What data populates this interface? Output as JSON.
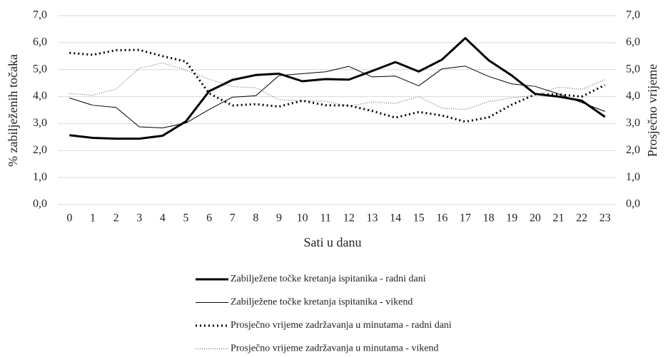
{
  "chart_data": {
    "type": "line",
    "x_label": "Sati u danu",
    "y_label": "% zabilježenih točaka",
    "y2_label": "Prosječno vrijeme",
    "categories": [
      "0",
      "1",
      "2",
      "3",
      "4",
      "5",
      "6",
      "7",
      "8",
      "9",
      "10",
      "11",
      "12",
      "13",
      "14",
      "15",
      "16",
      "17",
      "18",
      "19",
      "20",
      "21",
      "22",
      "23"
    ],
    "ylim": [
      0,
      7
    ],
    "yticks": [
      {
        "value": 0,
        "label": "0,0"
      },
      {
        "value": 1,
        "label": "1,0"
      },
      {
        "value": 2,
        "label": "2,0"
      },
      {
        "value": 3,
        "label": "3,0"
      },
      {
        "value": 4,
        "label": "4,0"
      },
      {
        "value": 5,
        "label": "5,0"
      },
      {
        "value": 6,
        "label": "6,0"
      },
      {
        "value": 7,
        "label": "7,0"
      }
    ],
    "y2lim": [
      0,
      7
    ],
    "y2ticks": [
      {
        "value": 0,
        "label": "0,0"
      },
      {
        "value": 1,
        "label": "1,0"
      },
      {
        "value": 2,
        "label": "2,0"
      },
      {
        "value": 3,
        "label": "3,0"
      },
      {
        "value": 4,
        "label": "4,0"
      },
      {
        "value": 5,
        "label": "5,0"
      },
      {
        "value": 6,
        "label": "6,0"
      },
      {
        "value": 7,
        "label": "7,0"
      }
    ],
    "grid": true,
    "legend": "bottom",
    "series": [
      {
        "name": "Zabilježene točke kretanja ispitanika - radni dani",
        "color": "#000000",
        "width": 3,
        "dash": "none",
        "values": [
          2.57,
          2.47,
          2.44,
          2.44,
          2.55,
          3.08,
          4.2,
          4.62,
          4.8,
          4.85,
          4.57,
          4.65,
          4.63,
          4.95,
          5.28,
          4.93,
          5.37,
          6.17,
          5.35,
          4.78,
          4.1,
          4.0,
          3.85,
          3.25
        ]
      },
      {
        "name": "Zabilježene točke kretanja ispitanika - vikend",
        "color": "#000000",
        "width": 1,
        "dash": "none",
        "values": [
          3.95,
          3.68,
          3.6,
          2.88,
          2.84,
          3.02,
          3.52,
          3.98,
          4.03,
          4.78,
          4.85,
          4.92,
          5.12,
          4.73,
          4.76,
          4.4,
          5.03,
          5.13,
          4.75,
          4.47,
          4.38,
          4.1,
          3.78,
          3.45
        ]
      },
      {
        "name": "Prosječno vrijeme zadržavanja u minutama - radni dani",
        "color": "#000000",
        "width": 3,
        "dash": "2 4",
        "axis": "y2",
        "values": [
          5.62,
          5.55,
          5.72,
          5.73,
          5.5,
          5.3,
          4.12,
          3.67,
          3.72,
          3.63,
          3.85,
          3.68,
          3.67,
          3.47,
          3.22,
          3.43,
          3.3,
          3.07,
          3.23,
          3.7,
          4.08,
          4.08,
          4.0,
          4.43
        ]
      },
      {
        "name": "Prosječno vrijeme zadržavanja u minutama - vikend",
        "color": "#555555",
        "width": 1,
        "dash": "1 2",
        "axis": "y2",
        "values": [
          4.12,
          4.05,
          4.28,
          5.05,
          5.25,
          4.98,
          4.65,
          4.37,
          4.33,
          3.88,
          3.85,
          3.83,
          3.65,
          3.8,
          3.75,
          4.0,
          3.57,
          3.52,
          3.82,
          3.95,
          4.05,
          4.35,
          4.27,
          4.63
        ]
      }
    ]
  }
}
